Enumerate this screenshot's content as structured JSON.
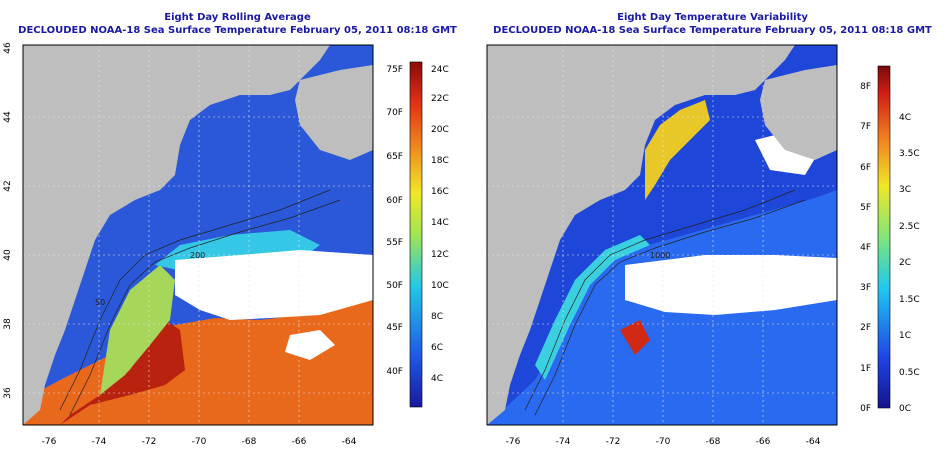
{
  "panels": [
    {
      "title_line1": "Eight Day Rolling Average",
      "title_line2": "DECLOUDED NOAA-18 Sea Surface Temperature February 05, 2011 08:18 GMT",
      "colorbar": {
        "left_labels": [
          "75F",
          "70F",
          "65F",
          "60F",
          "55F",
          "50F",
          "45F",
          "40F"
        ],
        "right_labels": [
          "24C",
          "22C",
          "20C",
          "18C",
          "16C",
          "14C",
          "12C",
          "10C",
          "8C",
          "6C",
          "4C"
        ]
      }
    },
    {
      "title_line1": "Eight Day Temperature Variability",
      "title_line2": "DECLOUDED NOAA-18 Sea Surface Temperature February 05, 2011 08:18 GMT",
      "colorbar": {
        "left_labels": [
          "8F",
          "7F",
          "6F",
          "5F",
          "4F",
          "3F",
          "2F",
          "1F",
          "0F"
        ],
        "right_labels": [
          "4C",
          "3.5C",
          "3C",
          "2.5C",
          "2C",
          "1.5C",
          "1C",
          "0.5C",
          "0C"
        ]
      }
    }
  ],
  "axes": {
    "x_ticks": [
      "-76",
      "-74",
      "-72",
      "-70",
      "-68",
      "-66",
      "-64"
    ],
    "y_ticks": [
      "46",
      "44",
      "42",
      "40",
      "38",
      "36"
    ]
  },
  "contour_labels": [
    "200",
    "50",
    "200",
    "50",
    "1000",
    "200",
    "1000",
    "50"
  ],
  "colors": {
    "title": "#1a1aa6",
    "land": "#bebebe",
    "cloud": "#ffffff",
    "cold": "#1e3ccf",
    "warm": "#e8681c",
    "hot": "#b01010"
  }
}
